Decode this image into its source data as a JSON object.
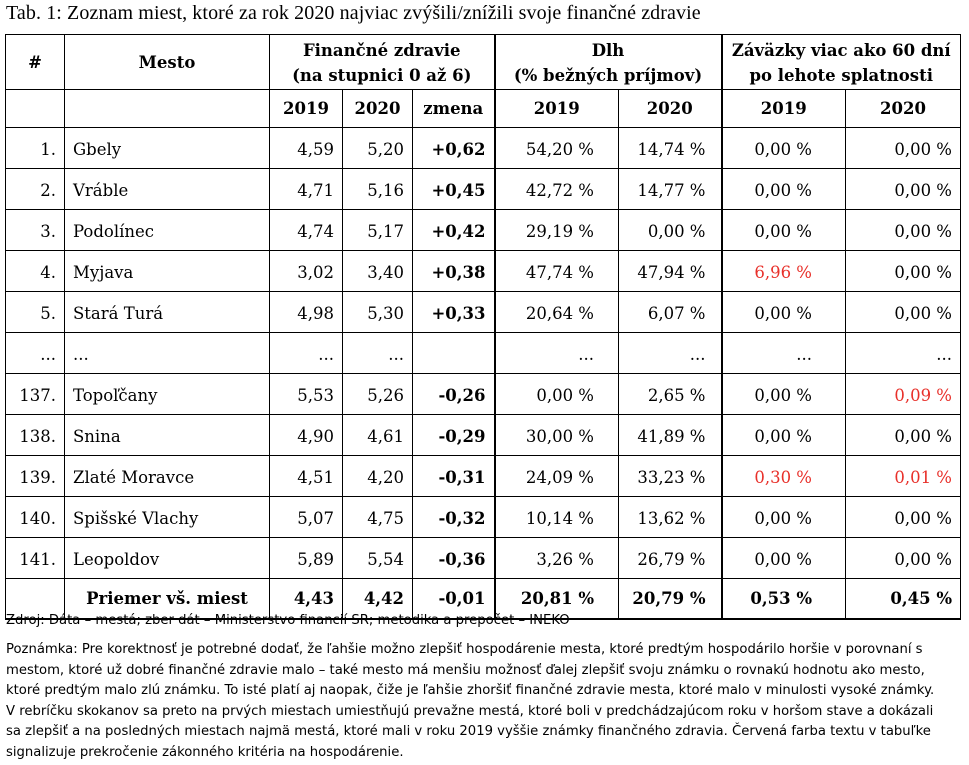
{
  "caption": "Tab. 1: Zoznam miest, ktoré za rok 2020 najviac zvýšili/znížili svoje finančné zdravie",
  "header": {
    "num": "#",
    "city": "Mesto",
    "fz_line1": "Finančné zdravie",
    "fz_line2": "(na stupnici 0 až 6)",
    "dlh_line1": "Dlh",
    "dlh_line2": "(% bežných príjmov)",
    "zav_line1": "Záväzky viac ako 60 dní",
    "zav_line2": "po lehote splatnosti",
    "y2019": "2019",
    "y2020": "2020",
    "zmena": "zmena"
  },
  "colors": {
    "red_flag": "#e8302a"
  },
  "rows": [
    {
      "num": "1.",
      "city": "Gbely",
      "fz19": "4,59",
      "fz20": "5,20",
      "zmena": "+0,62",
      "dlh19": "54,20 %",
      "dlh20": "14,74 %",
      "zav19": "0,00 %",
      "zav20": "0,00 %",
      "zav19_red": false,
      "zav20_red": false
    },
    {
      "num": "2.",
      "city": "Vráble",
      "fz19": "4,71",
      "fz20": "5,16",
      "zmena": "+0,45",
      "dlh19": "42,72 %",
      "dlh20": "14,77 %",
      "zav19": "0,00 %",
      "zav20": "0,00 %",
      "zav19_red": false,
      "zav20_red": false
    },
    {
      "num": "3.",
      "city": "Podolínec",
      "fz19": "4,74",
      "fz20": "5,17",
      "zmena": "+0,42",
      "dlh19": "29,19 %",
      "dlh20": "0,00 %",
      "zav19": "0,00 %",
      "zav20": "0,00 %",
      "zav19_red": false,
      "zav20_red": false
    },
    {
      "num": "4.",
      "city": "Myjava",
      "fz19": "3,02",
      "fz20": "3,40",
      "zmena": "+0,38",
      "dlh19": "47,74 %",
      "dlh20": "47,94 %",
      "zav19": "6,96 %",
      "zav20": "0,00 %",
      "zav19_red": true,
      "zav20_red": false
    },
    {
      "num": "5.",
      "city": "Stará Turá",
      "fz19": "4,98",
      "fz20": "5,30",
      "zmena": "+0,33",
      "dlh19": "20,64 %",
      "dlh20": "6,07 %",
      "zav19": "0,00 %",
      "zav20": "0,00 %",
      "zav19_red": false,
      "zav20_red": false
    },
    {
      "num": "...",
      "city": "...",
      "fz19": "...",
      "fz20": "...",
      "zmena": "",
      "dlh19": "...",
      "dlh20": "...",
      "zav19": "...",
      "zav20": "...",
      "zav19_red": false,
      "zav20_red": false
    },
    {
      "num": "137.",
      "city": "Topoľčany",
      "fz19": "5,53",
      "fz20": "5,26",
      "zmena": "-0,26",
      "dlh19": "0,00 %",
      "dlh20": "2,65 %",
      "zav19": "0,00 %",
      "zav20": "0,09 %",
      "zav19_red": false,
      "zav20_red": true
    },
    {
      "num": "138.",
      "city": "Snina",
      "fz19": "4,90",
      "fz20": "4,61",
      "zmena": "-0,29",
      "dlh19": "30,00 %",
      "dlh20": "41,89 %",
      "zav19": "0,00 %",
      "zav20": "0,00 %",
      "zav19_red": false,
      "zav20_red": false
    },
    {
      "num": "139.",
      "city": "Zlaté Moravce",
      "fz19": "4,51",
      "fz20": "4,20",
      "zmena": "-0,31",
      "dlh19": "24,09 %",
      "dlh20": "33,23 %",
      "zav19": "0,30 %",
      "zav20": "0,01 %",
      "zav19_red": true,
      "zav20_red": true
    },
    {
      "num": "140.",
      "city": "Spišské Vlachy",
      "fz19": "5,07",
      "fz20": "4,75",
      "zmena": "-0,32",
      "dlh19": "10,14 %",
      "dlh20": "13,62 %",
      "zav19": "0,00 %",
      "zav20": "0,00 %",
      "zav19_red": false,
      "zav20_red": false
    },
    {
      "num": "141.",
      "city": "Leopoldov",
      "fz19": "5,89",
      "fz20": "5,54",
      "zmena": "-0,36",
      "dlh19": "3,26 %",
      "dlh20": "26,79 %",
      "zav19": "0,00 %",
      "zav20": "0,00 %",
      "zav19_red": false,
      "zav20_red": false
    }
  ],
  "summary": {
    "label": "Priemer vš. miest",
    "fz19": "4,43",
    "fz20": "4,42",
    "zmena": "-0,01",
    "dlh19": "20,81 %",
    "dlh20": "20,79 %",
    "zav19": "0,53 %",
    "zav20": "0,45 %"
  },
  "source": "Zdroj: Dáta – mestá; zber dát – Ministerstvo financií SR; metodika a prepočet – INEKO",
  "note_lines": [
    "Poznámka: Pre korektnosť je potrebné dodať, že ľahšie možno zlepšiť hospodárenie mesta, ktoré predtým hospodárilo horšie v porovnaní s",
    "mestom, ktoré už dobré finančné zdravie malo – také mesto má menšiu možnosť ďalej zlepšiť svoju známku o rovnakú hodnotu ako mesto,",
    "ktoré predtým malo zlú známku. To isté platí aj naopak, čiže je ľahšie zhoršiť finančné zdravie mesta, ktoré malo v minulosti vysoké známky.",
    "V rebríčku skokanov sa preto na prvých miestach umiestňujú prevažne mestá, ktoré boli v predchádzajúcom roku v horšom stave a dokázali",
    "sa zlepšiť a na posledných miestach najmä mestá, ktoré mali v roku 2019 vyššie známky finančného zdravia. Červená farba textu v tabuľke",
    "signalizuje prekročenie zákonného kritéria na hospodárenie."
  ]
}
